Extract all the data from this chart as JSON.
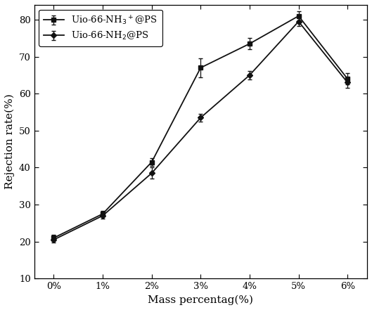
{
  "x_labels": [
    "0%",
    "1%",
    "2%",
    "3%",
    "4%",
    "5%",
    "6%"
  ],
  "x_values": [
    0,
    1,
    2,
    3,
    4,
    5,
    6
  ],
  "series1_label": "Uio-66-NH$_3$$^+$@PS",
  "series1_y": [
    21,
    27.5,
    41.5,
    67,
    73.5,
    81,
    64
  ],
  "series1_yerr": [
    0.8,
    0.8,
    1.0,
    2.5,
    1.5,
    1.2,
    1.5
  ],
  "series2_label": "Uio-66-NH$_2$@PS",
  "series2_y": [
    20.5,
    27,
    38.5,
    53.5,
    65,
    79.5,
    63
  ],
  "series2_yerr": [
    0.8,
    0.8,
    1.5,
    1.0,
    1.2,
    1.2,
    1.5
  ],
  "xlabel": "Mass percentag(%)",
  "ylabel": "Rejection rate(%)",
  "ylim": [
    10,
    84
  ],
  "yticks": [
    10,
    20,
    30,
    40,
    50,
    60,
    70,
    80
  ],
  "line_color": "#111111",
  "marker_series1": "s",
  "marker_series2": "D",
  "markersize": 4.5,
  "linewidth": 1.3,
  "capsize": 2.5,
  "legend_fontsize": 9.5,
  "axis_fontsize": 11,
  "tick_fontsize": 9.5
}
